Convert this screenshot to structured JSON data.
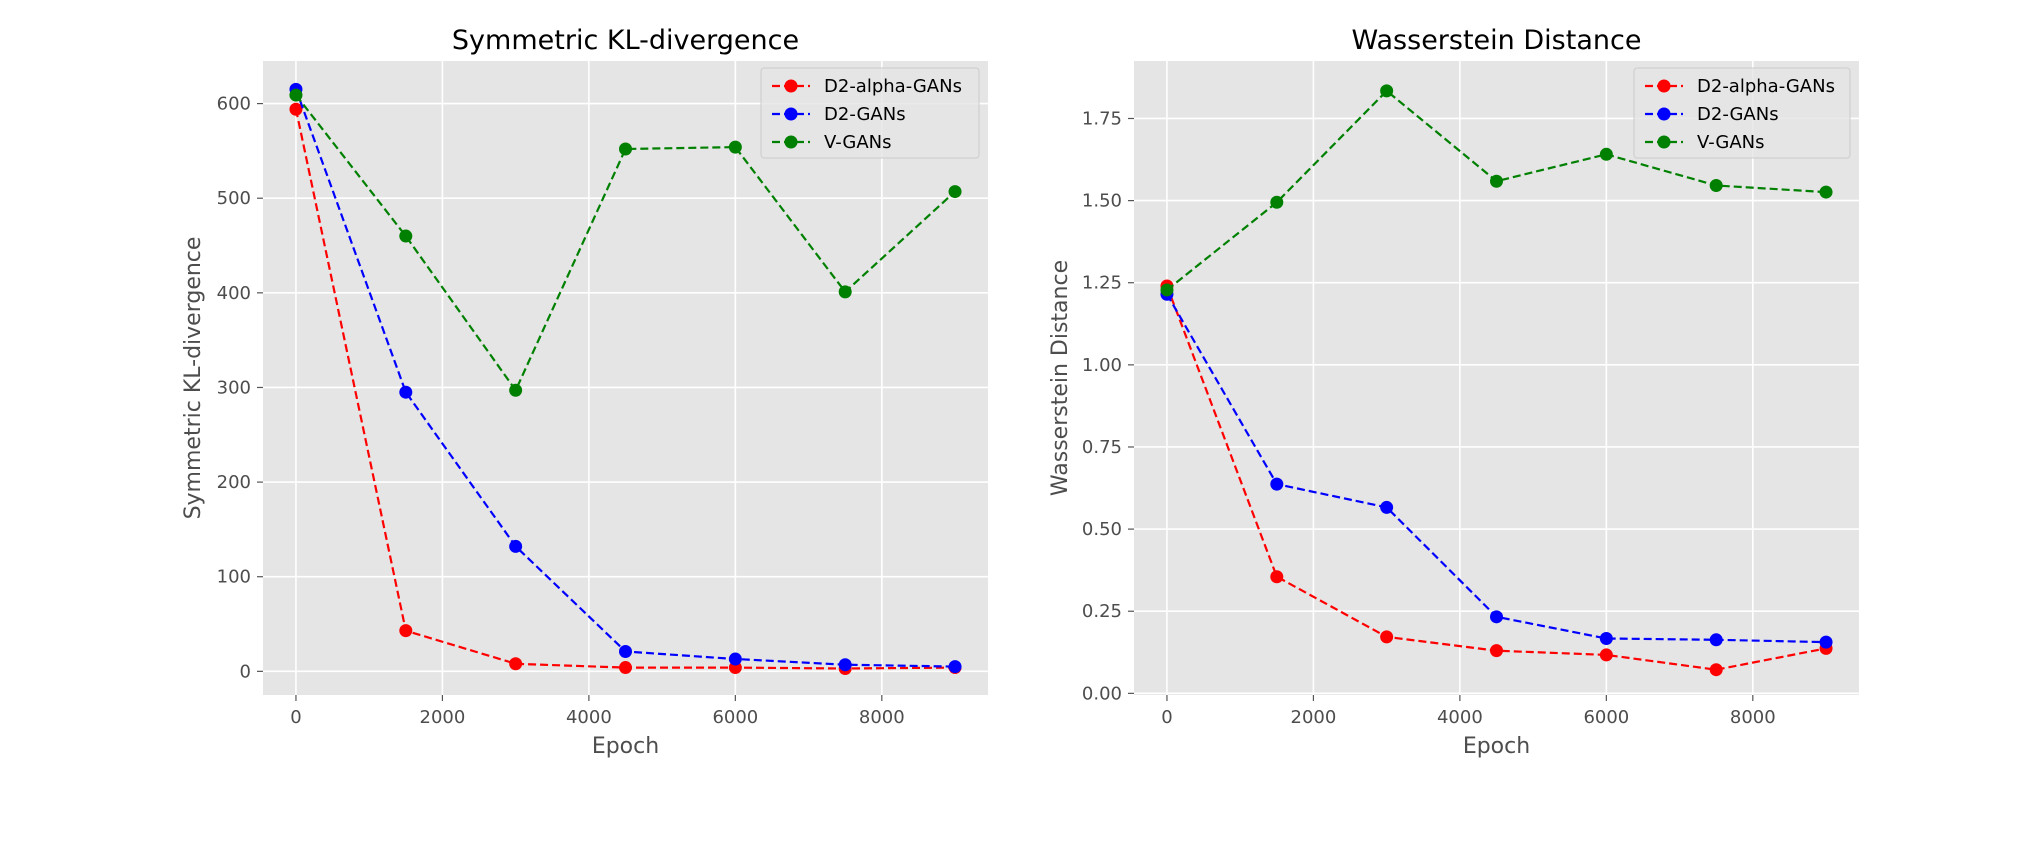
{
  "chart_data": [
    {
      "type": "line",
      "title": "Symmetric KL-divergence",
      "xlabel": "Epoch",
      "ylabel": "Symmetric KL-divergence",
      "x": [
        0,
        1500,
        3000,
        4500,
        6000,
        7500,
        9000
      ],
      "xlim": [
        -450,
        9450
      ],
      "ylim": [
        -25,
        645
      ],
      "xticks": [
        0,
        2000,
        4000,
        6000,
        8000
      ],
      "yticks": [
        0,
        100,
        200,
        300,
        400,
        500,
        600
      ],
      "grid": true,
      "legend_position": "top-right",
      "series": [
        {
          "name": "D2-alpha-GANs",
          "color": "#ff0000",
          "values": [
            594,
            43,
            8,
            4,
            4,
            3,
            4
          ]
        },
        {
          "name": "D2-GANs",
          "color": "#0000ff",
          "values": [
            615,
            295,
            132,
            21,
            13,
            7,
            5
          ]
        },
        {
          "name": "V-GANs",
          "color": "#008000",
          "values": [
            609,
            460,
            297,
            552,
            554,
            401,
            507
          ]
        }
      ]
    },
    {
      "type": "line",
      "title": "Wasserstein Distance",
      "xlabel": "Epoch",
      "ylabel": "Wasserstein Distance",
      "x": [
        0,
        1500,
        3000,
        4500,
        6000,
        7500,
        9000
      ],
      "xlim": [
        -450,
        9450
      ],
      "ylim": [
        -0.005,
        1.925
      ],
      "xticks": [
        0,
        2000,
        4000,
        6000,
        8000
      ],
      "yticks": [
        0.0,
        0.25,
        0.5,
        0.75,
        1.0,
        1.25,
        1.5,
        1.75
      ],
      "ytick_labels": [
        "0.00",
        "0.25",
        "0.50",
        "0.75",
        "1.00",
        "1.25",
        "1.50",
        "1.75"
      ],
      "grid": true,
      "legend_position": "top-right",
      "series": [
        {
          "name": "D2-alpha-GANs",
          "color": "#ff0000",
          "values": [
            1.24,
            0.355,
            0.172,
            0.13,
            0.117,
            0.072,
            0.137
          ]
        },
        {
          "name": "D2-GANs",
          "color": "#0000ff",
          "values": [
            1.215,
            0.637,
            0.566,
            0.233,
            0.167,
            0.163,
            0.156
          ]
        },
        {
          "name": "V-GANs",
          "color": "#008000",
          "values": [
            1.228,
            1.495,
            1.834,
            1.559,
            1.641,
            1.546,
            1.526
          ]
        }
      ]
    }
  ]
}
